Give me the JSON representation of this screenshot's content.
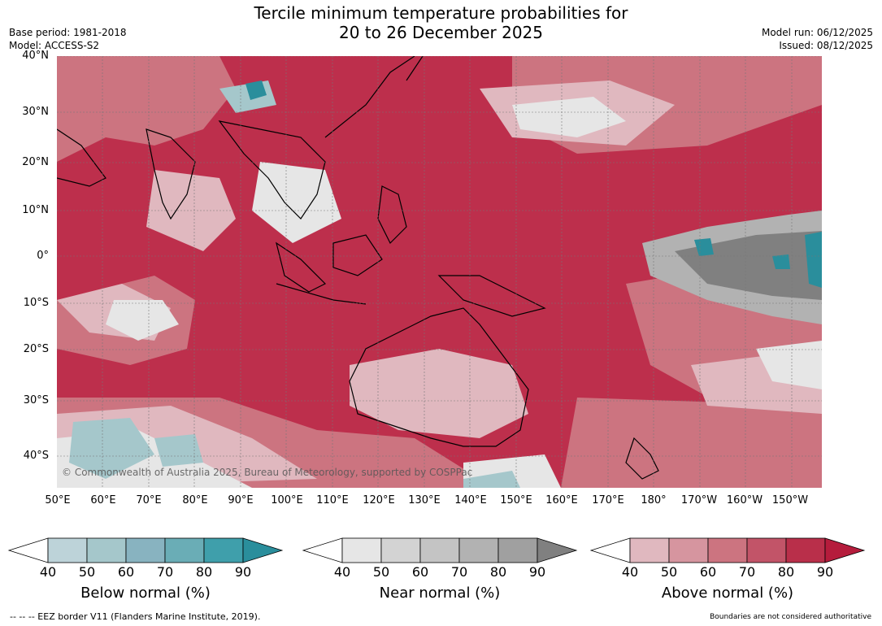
{
  "title_line1": "Tercile minimum temperature probabilities for",
  "title_line2": "20 to 26 December 2025",
  "base_period": "Base period: 1981-2018",
  "model": "Model: ACCESS-S2",
  "model_run": "Model run: 06/12/2025",
  "issued": "Issued: 08/12/2025",
  "copyright": "© Commonwealth of Australia 2025, Bureau of Meteorology, supported by COSPPac",
  "lat_labels": [
    "40°N",
    "30°N",
    "20°N",
    "10°N",
    "0°",
    "10°S",
    "20°S",
    "30°S",
    "40°S"
  ],
  "lon_labels": [
    "50°E",
    "60°E",
    "70°E",
    "80°E",
    "90°E",
    "100°E",
    "110°E",
    "120°E",
    "130°E",
    "140°E",
    "150°E",
    "160°E",
    "170°E",
    "180°",
    "170°W",
    "160°W",
    "150°W"
  ],
  "colorbars": [
    {
      "title": "Below normal (%)",
      "ticks": [
        "40",
        "50",
        "60",
        "70",
        "80",
        "90"
      ],
      "colors": [
        "#ffffff",
        "#bdd3d9",
        "#a5c7cb",
        "#88b3c0",
        "#6aadb6",
        "#3f9fab",
        "#2a8e9c"
      ]
    },
    {
      "title": "Near normal (%)",
      "ticks": [
        "40",
        "50",
        "60",
        "70",
        "80",
        "90"
      ],
      "colors": [
        "#ffffff",
        "#e6e6e6",
        "#d3d3d3",
        "#c4c4c4",
        "#b2b2b2",
        "#a0a0a0",
        "#808080"
      ]
    },
    {
      "title": "Above normal (%)",
      "ticks": [
        "40",
        "50",
        "60",
        "70",
        "80",
        "90"
      ],
      "colors": [
        "#ffffff",
        "#e0b8bf",
        "#d6959f",
        "#cc7480",
        "#c25468",
        "#b92f4a",
        "#b51c3c"
      ]
    }
  ],
  "footer_left": "--  --  -- EEZ border V11 (Flanders Marine Institute, 2019).",
  "footer_right": "Boundaries are not considered authoritative"
}
